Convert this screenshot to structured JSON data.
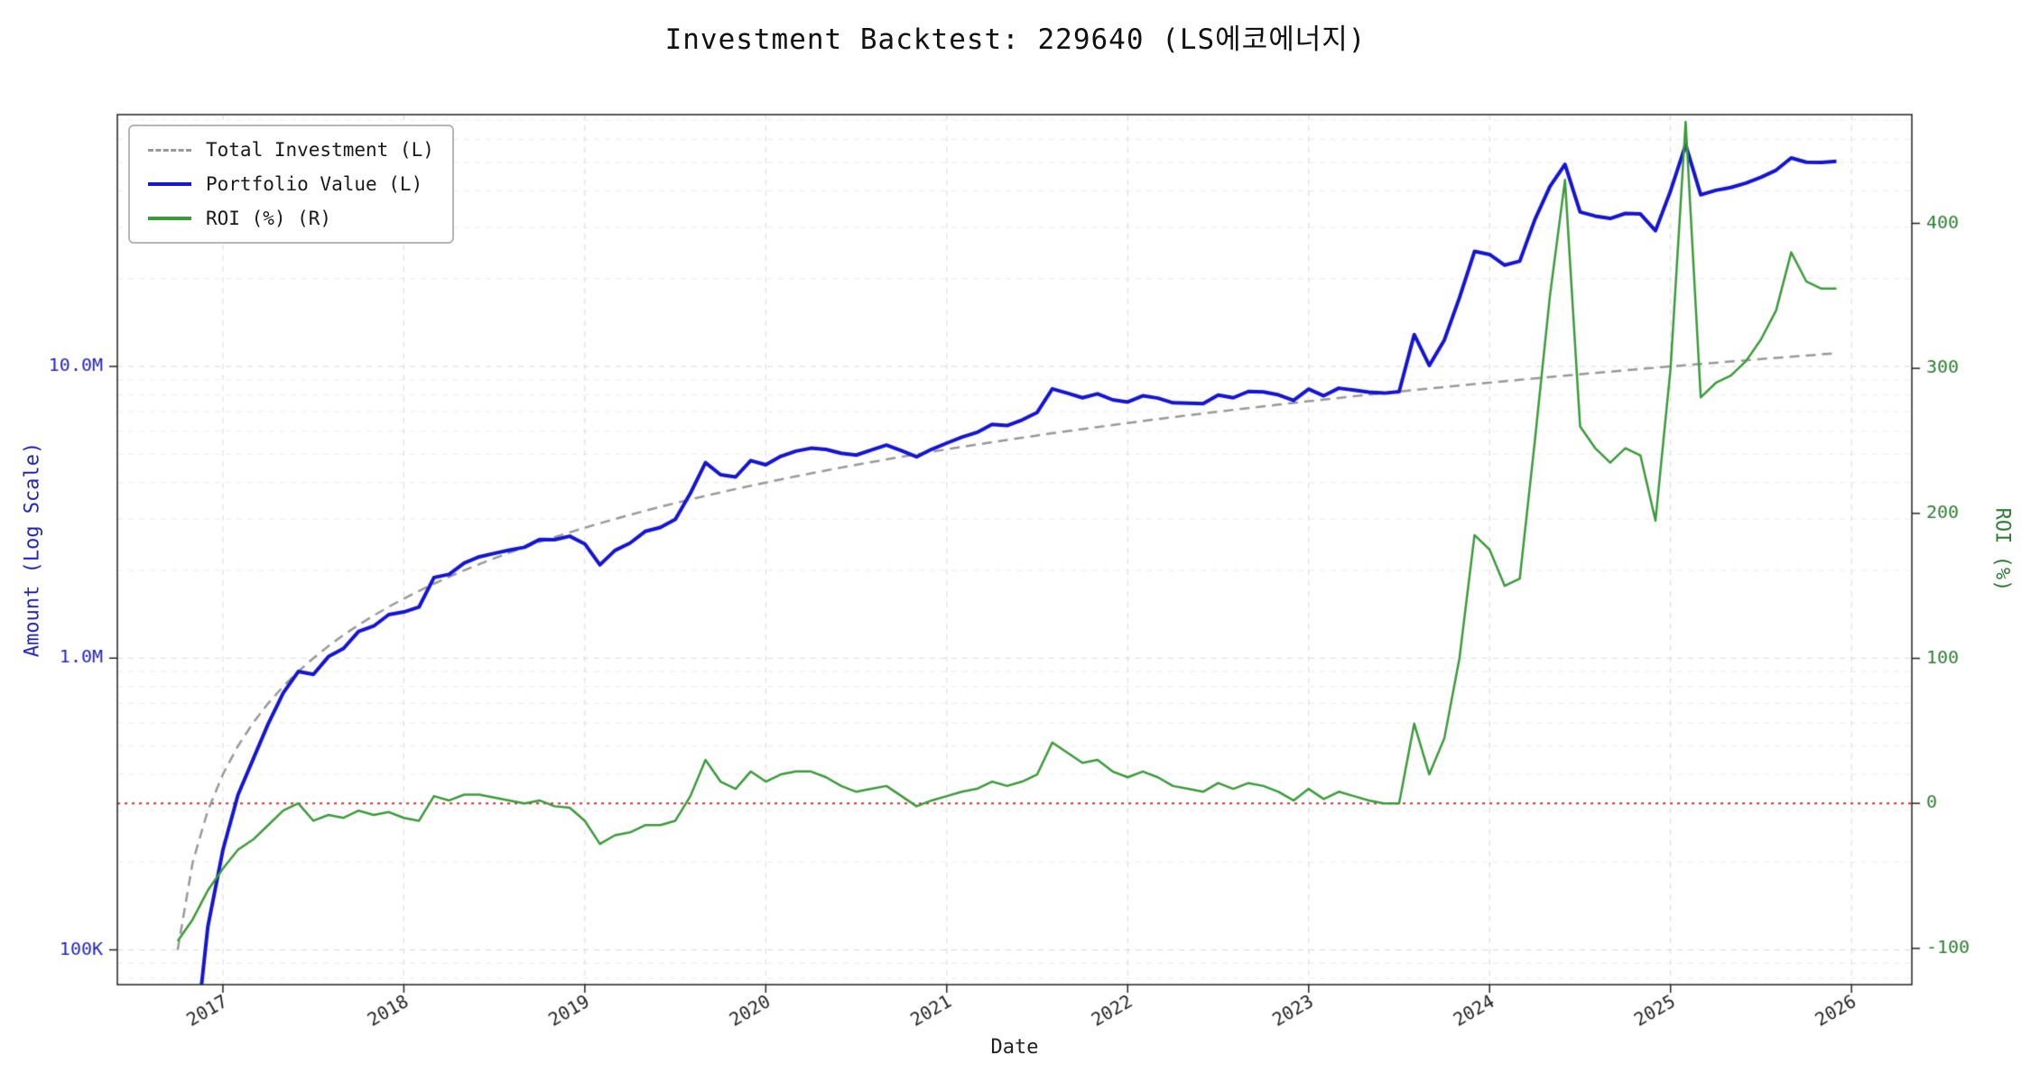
{
  "title": "Investment Backtest: 229640 (LS에코에너지)",
  "axes": {
    "x_label": "Date",
    "y_left_label": "Amount (Log Scale)",
    "y_right_label": "ROI (%)",
    "y_left_color": "#2424b8",
    "y_right_color": "#2e7d32",
    "tick_color": "#222222",
    "grid_color": "#d9d9d9",
    "grid_minor_color": "#ebebeb",
    "spine_color": "#222222"
  },
  "legend": {
    "items": [
      {
        "label": "Total Investment (L)",
        "color": "#999999",
        "style": "dashed"
      },
      {
        "label": "Portfolio Value (L)",
        "color": "#1414d2",
        "style": "solid"
      },
      {
        "label": "ROI (%) (R)",
        "color": "#3c9a3c",
        "style": "solid"
      }
    ]
  },
  "chart_data": {
    "type": "line",
    "title": "Investment Backtest: 229640 (LS에코에너지)",
    "xlabel": "Date",
    "x_start": "2016-10",
    "x_interval": "monthly",
    "x_points": 111,
    "x_ticks": [
      "2017",
      "2018",
      "2019",
      "2020",
      "2021",
      "2022",
      "2023",
      "2024",
      "2025",
      "2026"
    ],
    "y_left": {
      "label": "Amount (Log Scale)",
      "scale": "log",
      "unit": "millions",
      "range": [
        0.076,
        73
      ],
      "ticks": [
        {
          "value": 0.1,
          "label": "100K"
        },
        {
          "value": 1.0,
          "label": "1.0M"
        },
        {
          "value": 10.0,
          "label": "10.0M"
        }
      ]
    },
    "y_right": {
      "label": "ROI (%)",
      "range": [
        -125,
        475
      ],
      "ticks": [
        -100,
        0,
        100,
        200,
        300,
        400
      ]
    },
    "zero_line": {
      "axis": "right",
      "value": 0,
      "color": "#cc3333",
      "style": "dotted"
    },
    "series": [
      {
        "name": "Total Investment (L)",
        "axis": "left",
        "color": "#999999",
        "dash": true,
        "width": 2.5,
        "values": [
          0.1,
          0.2,
          0.3,
          0.4,
          0.5,
          0.6,
          0.7,
          0.8,
          0.9,
          1.0,
          1.1,
          1.2,
          1.3,
          1.4,
          1.5,
          1.6,
          1.7,
          1.8,
          1.9,
          2.0,
          2.1,
          2.2,
          2.3,
          2.4,
          2.5,
          2.6,
          2.7,
          2.8,
          2.9,
          3.0,
          3.1,
          3.2,
          3.3,
          3.4,
          3.5,
          3.6,
          3.7,
          3.8,
          3.9,
          4.0,
          4.1,
          4.2,
          4.3,
          4.4,
          4.5,
          4.6,
          4.7,
          4.8,
          4.9,
          5.0,
          5.1,
          5.2,
          5.3,
          5.4,
          5.5,
          5.6,
          5.7,
          5.8,
          5.9,
          6.0,
          6.1,
          6.2,
          6.3,
          6.4,
          6.5,
          6.6,
          6.7,
          6.8,
          6.9,
          7.0,
          7.1,
          7.2,
          7.3,
          7.4,
          7.5,
          7.6,
          7.7,
          7.8,
          7.9,
          8.0,
          8.1,
          8.2,
          8.3,
          8.4,
          8.5,
          8.6,
          8.7,
          8.8,
          8.9,
          9.0,
          9.1,
          9.2,
          9.3,
          9.4,
          9.5,
          9.6,
          9.7,
          9.8,
          9.9,
          10.0,
          10.1,
          10.2,
          10.3,
          10.4,
          10.5,
          10.6,
          10.7,
          10.8,
          10.9,
          11.0,
          11.1
        ]
      },
      {
        "name": "Portfolio Value (L)",
        "axis": "left",
        "color": "#1414d2",
        "dash": false,
        "width": 4,
        "values": [
          0.005,
          0.04,
          0.12,
          0.22,
          0.34,
          0.45,
          0.595,
          0.76,
          0.9,
          0.88,
          1.012,
          1.08,
          1.235,
          1.288,
          1.41,
          1.44,
          1.496,
          1.89,
          1.938,
          2.12,
          2.226,
          2.288,
          2.346,
          2.4,
          2.55,
          2.548,
          2.619,
          2.464,
          2.088,
          2.34,
          2.48,
          2.72,
          2.805,
          2.992,
          3.675,
          4.68,
          4.255,
          4.18,
          4.758,
          4.6,
          4.92,
          5.124,
          5.246,
          5.192,
          5.04,
          4.968,
          5.17,
          5.376,
          5.145,
          4.9,
          5.202,
          5.46,
          5.724,
          5.94,
          6.325,
          6.272,
          6.555,
          6.96,
          8.378,
          8.1,
          7.808,
          8.06,
          7.686,
          7.552,
          7.93,
          7.788,
          7.504,
          7.48,
          7.452,
          7.98,
          7.81,
          8.208,
          8.176,
          7.992,
          7.65,
          8.36,
          7.931,
          8.424,
          8.295,
          8.16,
          8.1,
          8.2,
          12.865,
          10.08,
          12.325,
          17.2,
          24.795,
          24.2,
          22.25,
          22.95,
          31.85,
          41.4,
          49.29,
          33.84,
          32.775,
          32.16,
          33.465,
          33.32,
          29.205,
          40.0,
          57.57,
          38.76,
          40.17,
          41.08,
          42.525,
          44.52,
          47.08,
          51.84,
          50.14,
          50.05,
          50.505
        ]
      },
      {
        "name": "ROI (%) (R)",
        "axis": "right",
        "color": "#3c9a3c",
        "dash": false,
        "width": 2.5,
        "values": [
          -95,
          -80,
          -60,
          -45,
          -32,
          -25,
          -15,
          -5,
          0,
          -12,
          -8,
          -10,
          -5,
          -8,
          -6,
          -10,
          -12,
          5,
          2,
          6,
          6,
          4,
          2,
          0,
          2,
          -2,
          -3,
          -12,
          -28,
          -22,
          -20,
          -15,
          -15,
          -12,
          5,
          30,
          15,
          10,
          22,
          15,
          20,
          22,
          22,
          18,
          12,
          8,
          10,
          12,
          5,
          -2,
          2,
          5,
          8,
          10,
          15,
          12,
          15,
          20,
          42,
          35,
          28,
          30,
          22,
          18,
          22,
          18,
          12,
          10,
          8,
          14,
          10,
          14,
          12,
          8,
          2,
          10,
          3,
          8,
          5,
          2,
          0,
          0,
          55,
          20,
          45,
          100,
          185,
          175,
          150,
          155,
          250,
          350,
          430,
          260,
          245,
          235,
          245,
          240,
          195,
          300,
          470,
          280,
          290,
          295,
          305,
          320,
          340,
          380,
          360,
          355,
          355
        ]
      }
    ]
  }
}
